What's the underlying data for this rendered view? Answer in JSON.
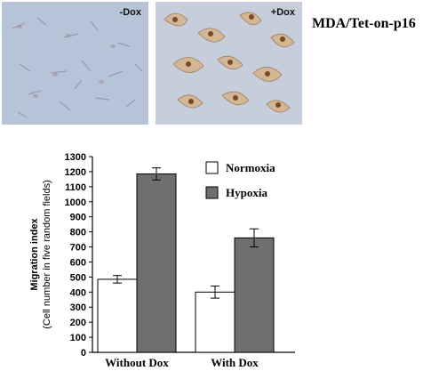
{
  "figure": {
    "title": "MDA/Tet-on-p16",
    "panels": [
      {
        "label": "-Dox",
        "tint": "#b7c3d7"
      },
      {
        "label": "+Dox",
        "tint": "#c7cedb"
      }
    ]
  },
  "chart_data": {
    "type": "bar",
    "categories": [
      "Without Dox",
      "With Dox"
    ],
    "series": [
      {
        "name": "Normoxia",
        "color": "#ffffff",
        "values": [
          485,
          400
        ],
        "errors": [
          25,
          40
        ]
      },
      {
        "name": "Hypoxia",
        "color": "#6f6f6f",
        "values": [
          1185,
          760
        ],
        "errors": [
          40,
          60
        ]
      }
    ],
    "ylabel": "Migration index",
    "ylabel_sub": "(Cell number in five random fields)",
    "ylim": [
      0,
      1300
    ],
    "yticks": [
      0,
      100,
      200,
      300,
      400,
      500,
      600,
      700,
      800,
      900,
      1000,
      1100,
      1200,
      1300
    ],
    "legend_position": "top-right",
    "grid": false
  }
}
